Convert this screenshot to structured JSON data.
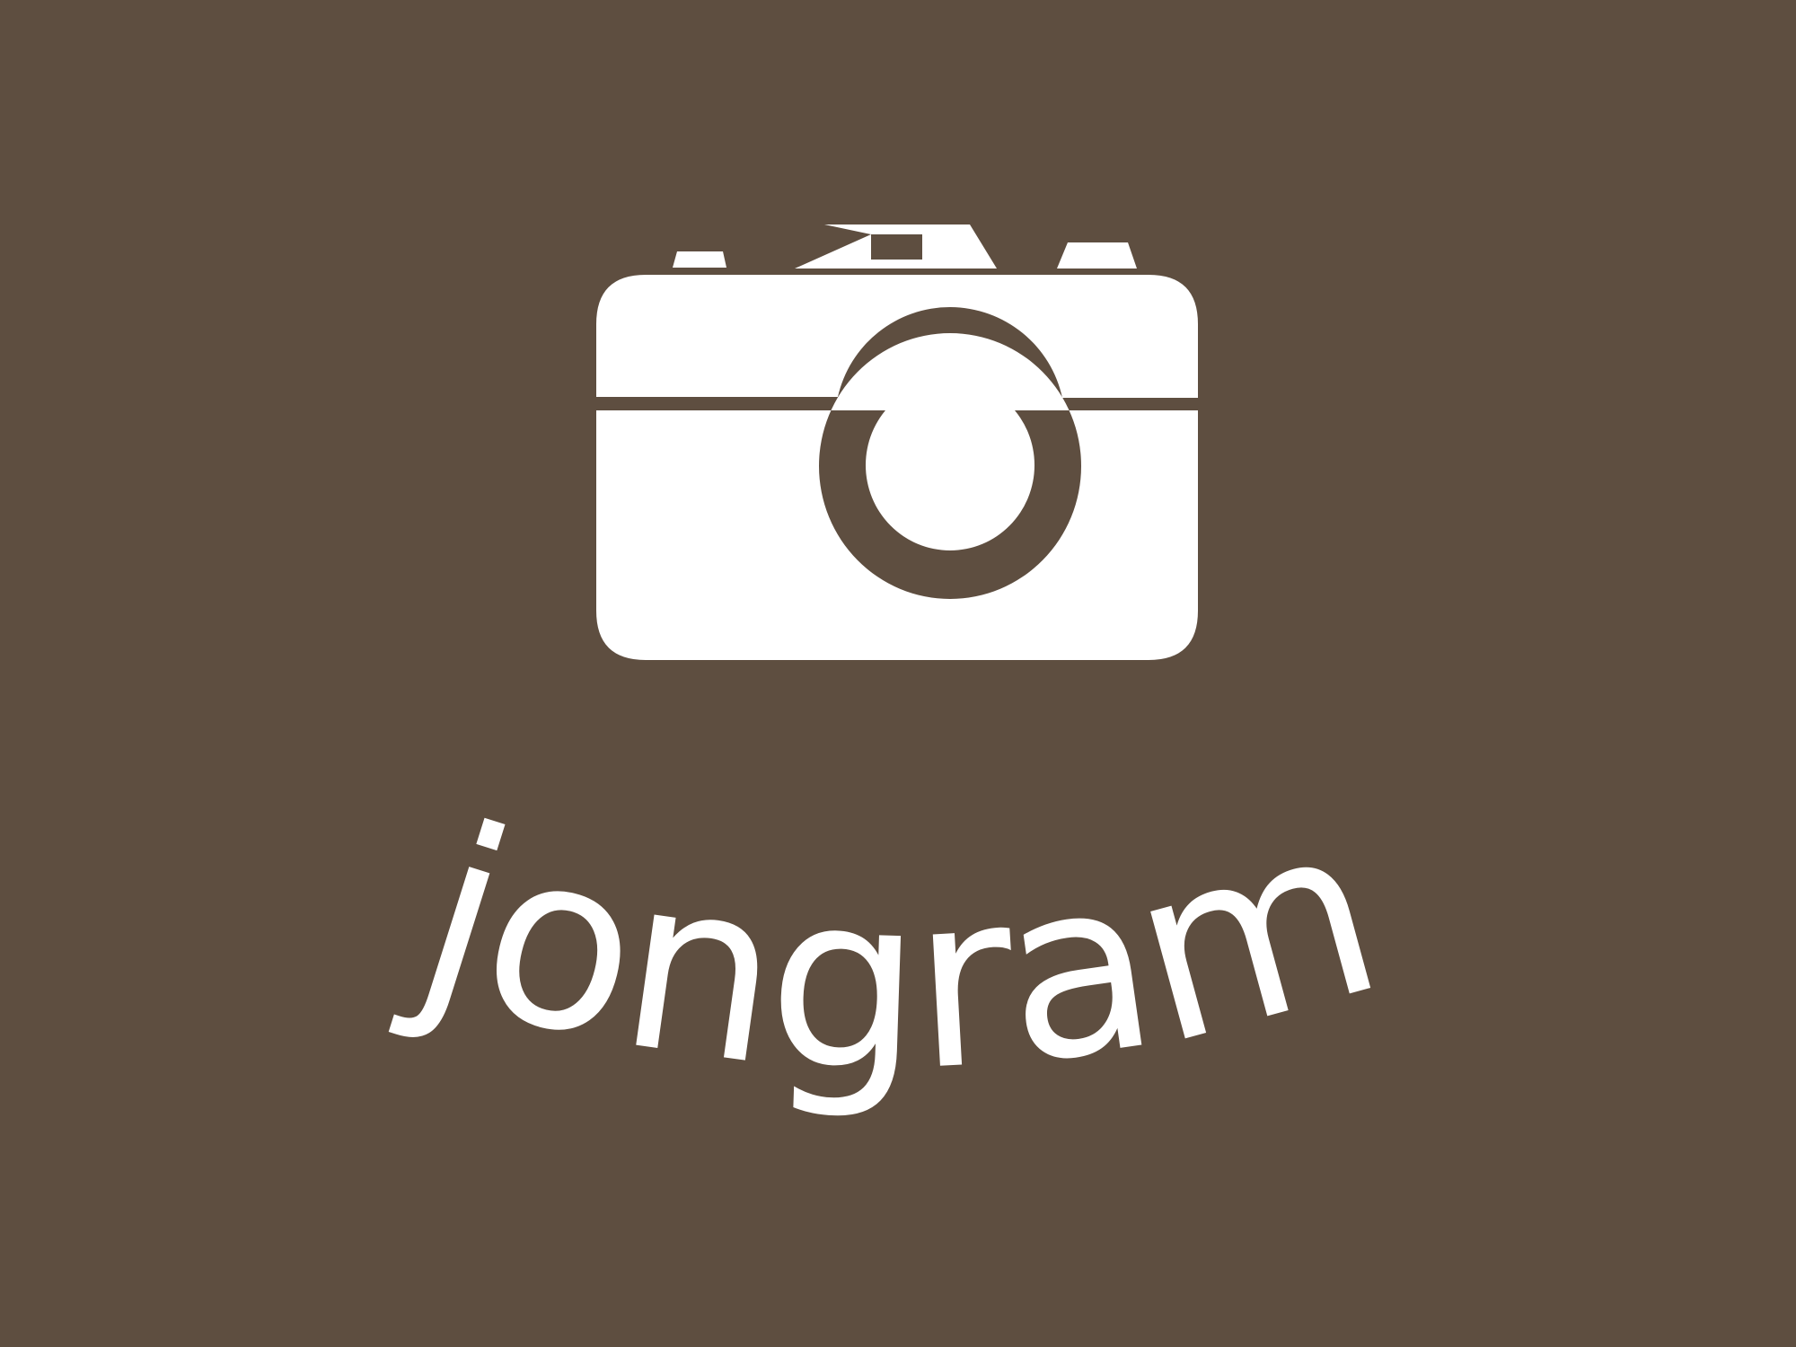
{
  "logo": {
    "wordmark": "jongram",
    "icon": "camera-icon",
    "colors": {
      "background": "#5e4e40",
      "foreground": "#ffffff"
    }
  }
}
